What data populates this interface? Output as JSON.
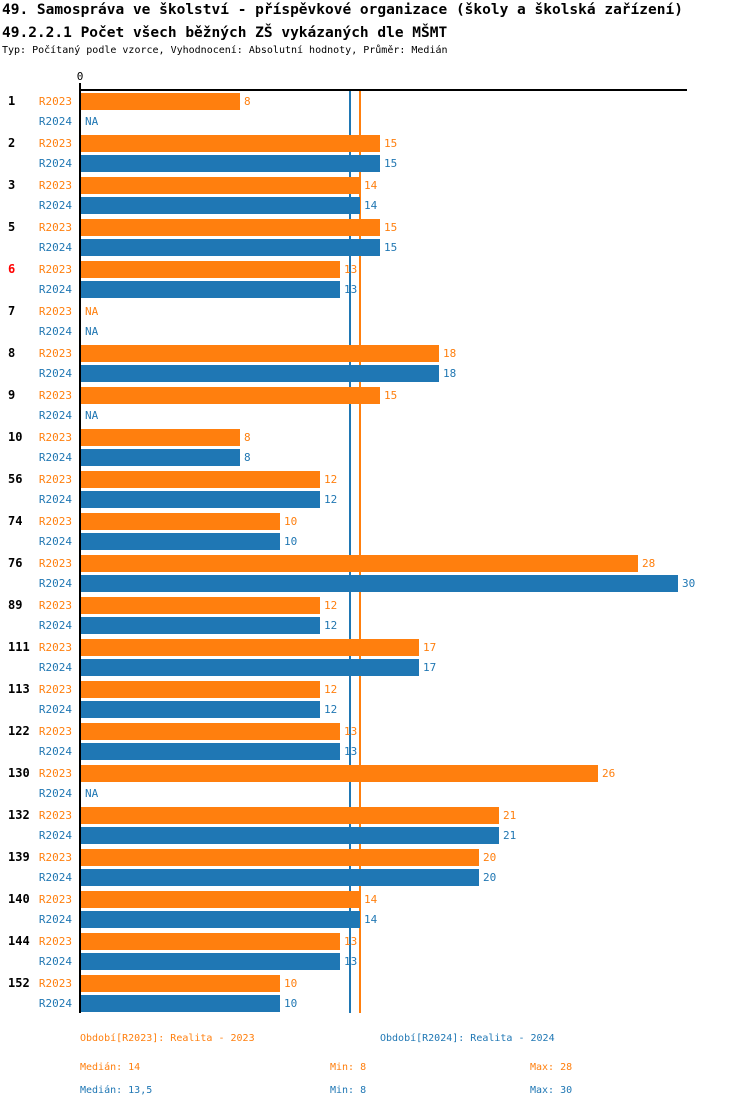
{
  "header": {
    "title_line1": "49. Samospráva ve školství - příspěvkové organizace (školy a školská zařízení)",
    "title_line2": "49.2.2.1 Počet všech běžných ZŠ vykázaných dle MŠMT",
    "subtitle": "Typ: Počítaný podle vzorce, Vyhodnocení: Absolutní hodnoty, Průměr: Medián"
  },
  "chart_data": {
    "type": "bar",
    "orientation": "horizontal",
    "title": "49.2.2.1 Počet všech běžných ZŠ vykázaných dle MŠMT",
    "xlabel": "",
    "ylabel": "",
    "xlim": [
      0,
      30.5
    ],
    "x_axis_zero_label": "0",
    "grid": false,
    "na_label": "NA",
    "categories": [
      "1",
      "2",
      "3",
      "5",
      "6",
      "7",
      "8",
      "9",
      "10",
      "56",
      "74",
      "76",
      "89",
      "111",
      "113",
      "122",
      "130",
      "132",
      "139",
      "140",
      "144",
      "152"
    ],
    "highlighted_categories": [
      "6"
    ],
    "highlight_color": "#ff0000",
    "series": [
      {
        "name": "R2023",
        "color": "#ff7f0e",
        "values": [
          8,
          15,
          14,
          15,
          13,
          null,
          18,
          15,
          8,
          12,
          10,
          28,
          12,
          17,
          12,
          13,
          26,
          21,
          20,
          14,
          13,
          10
        ]
      },
      {
        "name": "R2024",
        "color": "#1f77b4",
        "values": [
          null,
          15,
          14,
          15,
          13,
          null,
          18,
          null,
          8,
          12,
          10,
          30,
          12,
          17,
          12,
          13,
          null,
          21,
          20,
          14,
          13,
          10
        ]
      }
    ],
    "reference_lines": [
      {
        "value": 13.5,
        "color": "#1f77b4"
      },
      {
        "value": 14,
        "color": "#ff7f0e"
      }
    ]
  },
  "legend": {
    "r2023": {
      "label": "Období[R2023]: Realita - 2023",
      "color": "#ff7f0e"
    },
    "r2024": {
      "label": "Období[R2024]: Realita - 2024",
      "color": "#1f77b4"
    }
  },
  "stats": {
    "r2023": {
      "median": "Medián: 14",
      "min": "Min: 8",
      "max": "Max: 28",
      "color": "#ff7f0e"
    },
    "r2024": {
      "median": "Medián: 13,5",
      "min": "Min: 8",
      "max": "Max: 30",
      "color": "#1f77b4"
    }
  }
}
